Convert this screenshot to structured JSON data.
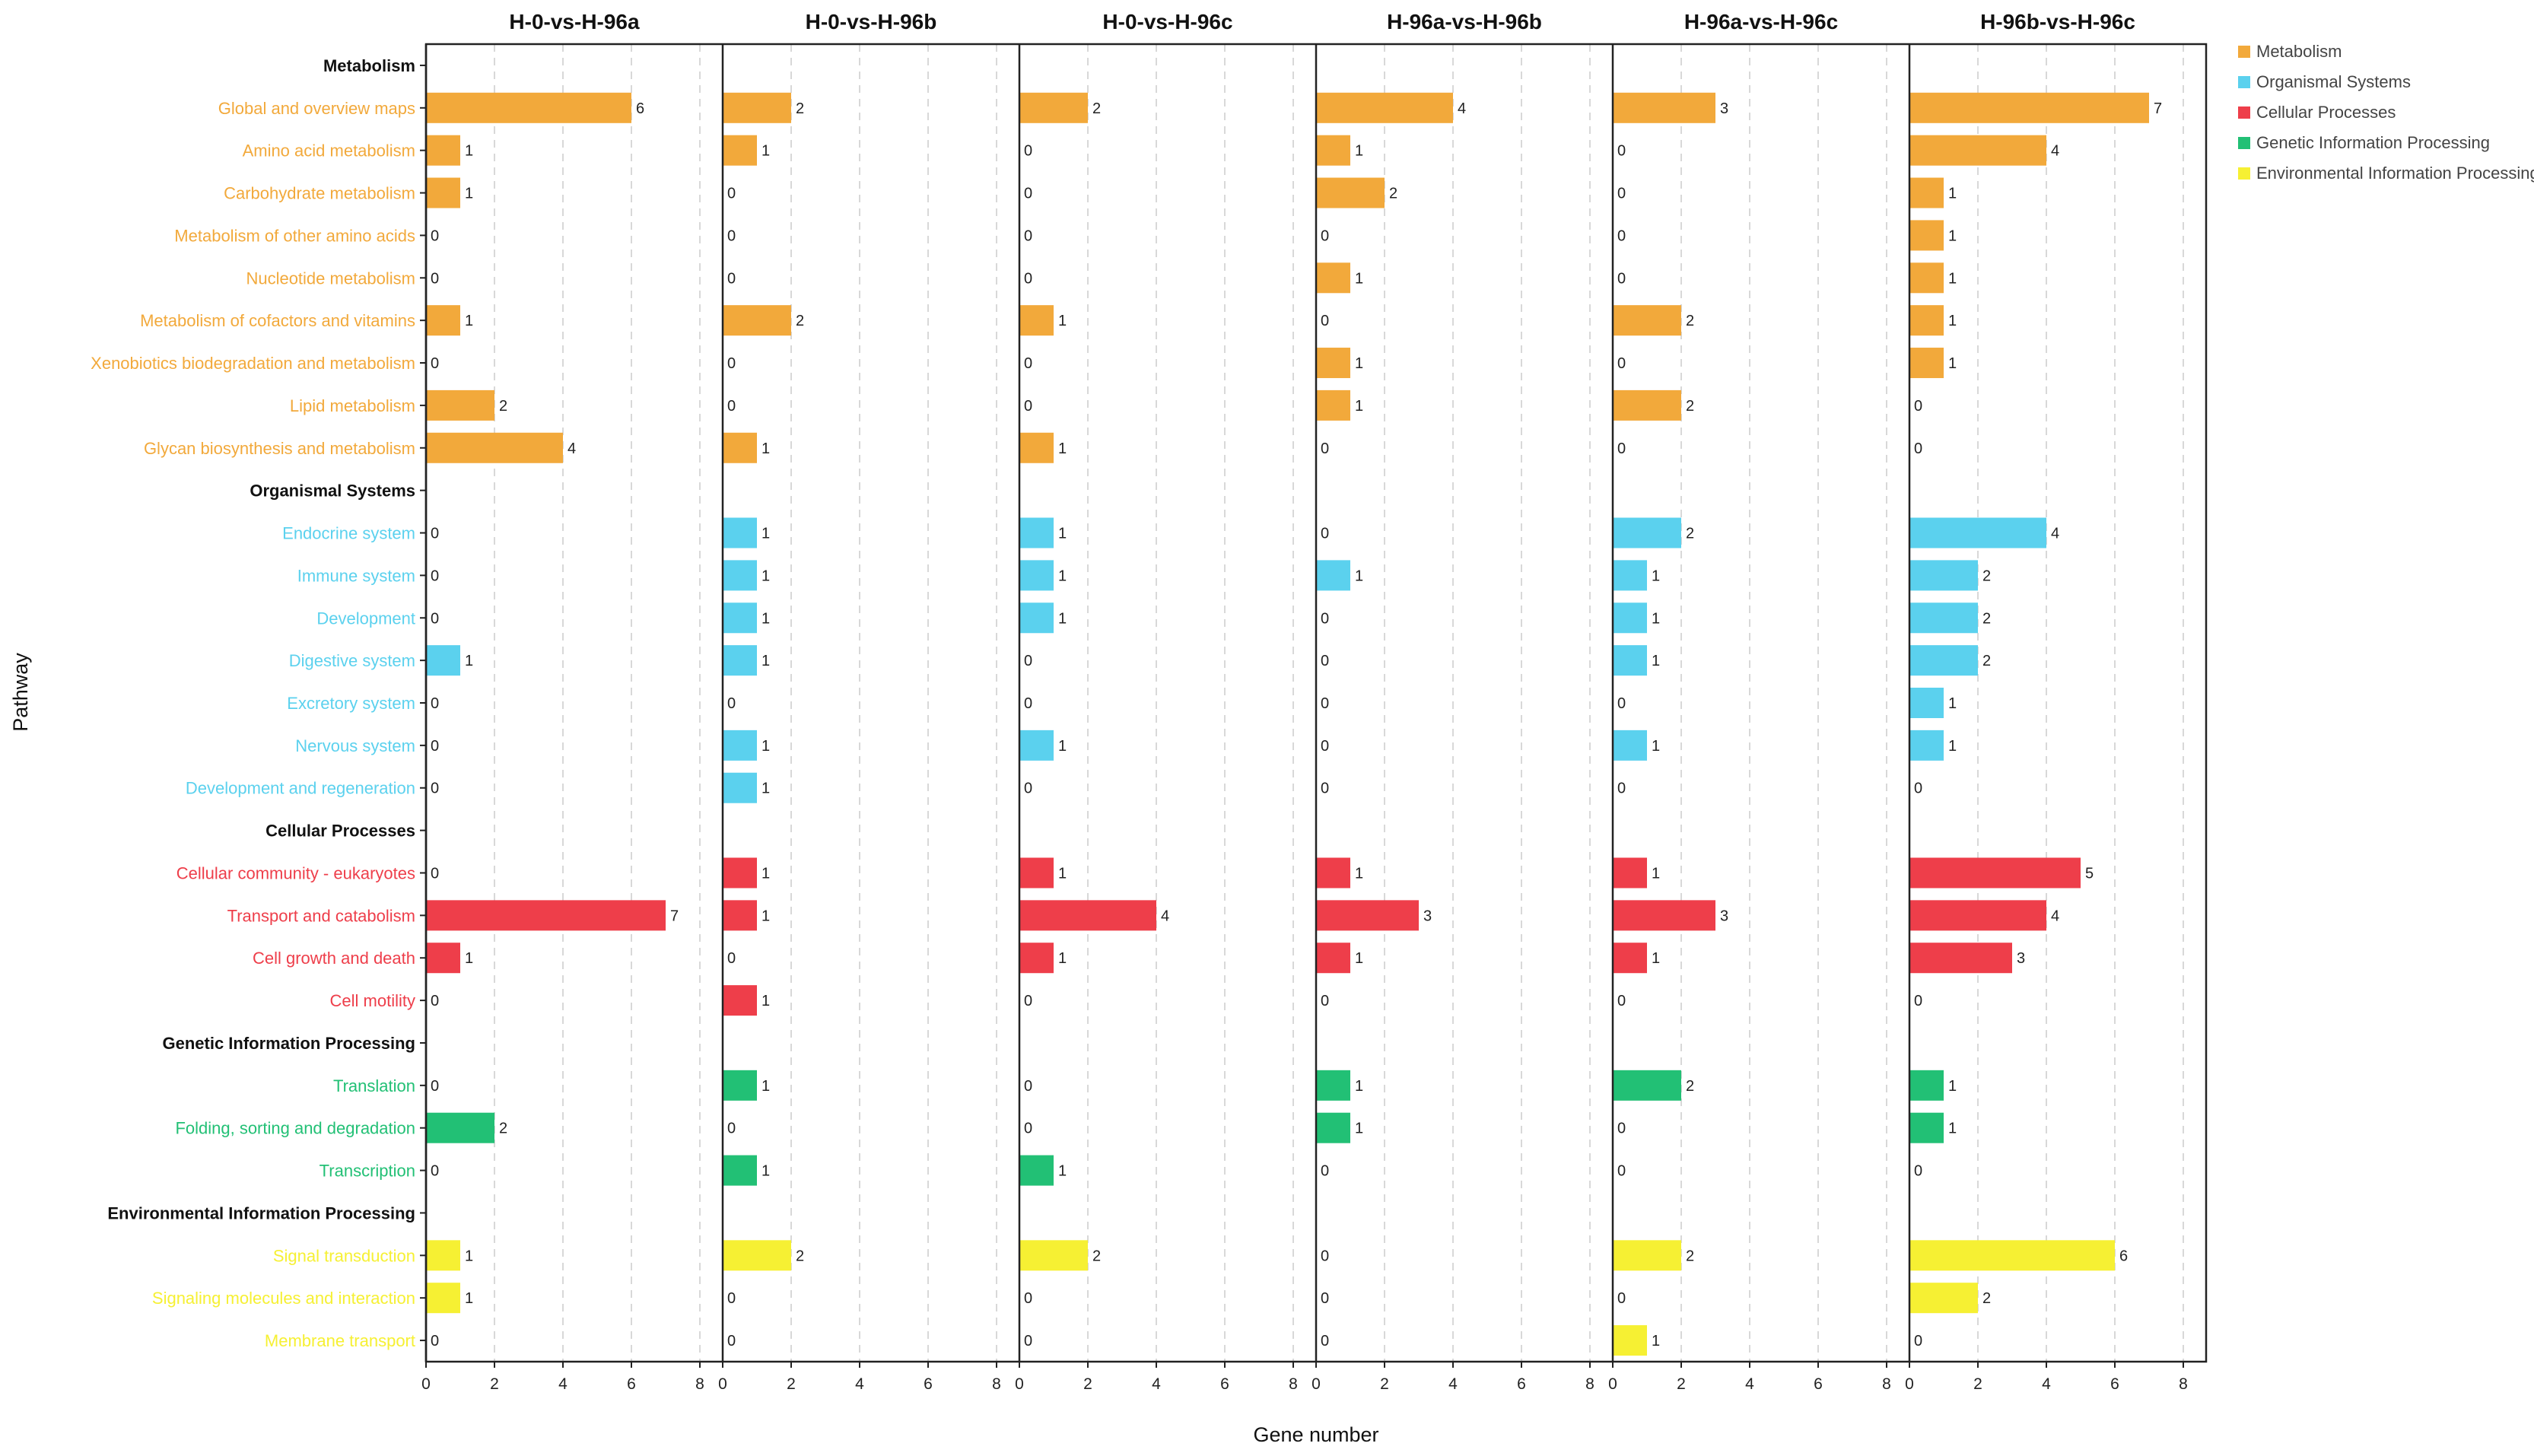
{
  "chart_data": {
    "type": "bar",
    "orientation": "horizontal",
    "xlabel": "Gene number",
    "ylabel": "Pathway",
    "xlim": [
      0,
      8
    ],
    "xticks": [
      "0",
      "2",
      "4",
      "6",
      "8"
    ],
    "grid": true,
    "legend_position": "top-right",
    "class_colors": {
      "Metabolism": "#F2A93B",
      "Organismal Systems": "#5BD1EE",
      "Cellular Processes": "#EE3E4A",
      "Genetic Information Processing": "#22C075",
      "Environmental Information Processing": "#F6F033"
    },
    "legend": [
      "Metabolism",
      "Organismal Systems",
      "Cellular Processes",
      "Genetic Information Processing",
      "Environmental Information Processing"
    ],
    "panels": [
      "H-0-vs-H-96a",
      "H-0-vs-H-96b",
      "H-0-vs-H-96c",
      "H-96a-vs-H-96b",
      "H-96a-vs-H-96c",
      "H-96b-vs-H-96c"
    ],
    "rows": [
      {
        "label": "Metabolism",
        "header": true
      },
      {
        "label": "Global and overview maps",
        "class": "Metabolism",
        "values": [
          6,
          2,
          2,
          4,
          3,
          7
        ]
      },
      {
        "label": "Amino acid metabolism",
        "class": "Metabolism",
        "values": [
          1,
          1,
          0,
          1,
          0,
          4
        ]
      },
      {
        "label": "Carbohydrate metabolism",
        "class": "Metabolism",
        "values": [
          1,
          0,
          0,
          2,
          0,
          1
        ]
      },
      {
        "label": "Metabolism of other amino acids",
        "class": "Metabolism",
        "values": [
          0,
          0,
          0,
          0,
          0,
          1
        ]
      },
      {
        "label": "Nucleotide metabolism",
        "class": "Metabolism",
        "values": [
          0,
          0,
          0,
          1,
          0,
          1
        ]
      },
      {
        "label": "Metabolism of cofactors and vitamins",
        "class": "Metabolism",
        "values": [
          1,
          2,
          1,
          0,
          2,
          1
        ]
      },
      {
        "label": "Xenobiotics biodegradation and metabolism",
        "class": "Metabolism",
        "values": [
          0,
          0,
          0,
          1,
          0,
          1
        ]
      },
      {
        "label": "Lipid metabolism",
        "class": "Metabolism",
        "values": [
          2,
          0,
          0,
          1,
          2,
          0
        ]
      },
      {
        "label": "Glycan biosynthesis and metabolism",
        "class": "Metabolism",
        "values": [
          4,
          1,
          1,
          0,
          0,
          0
        ]
      },
      {
        "label": "Organismal Systems",
        "header": true
      },
      {
        "label": "Endocrine system",
        "class": "Organismal Systems",
        "values": [
          0,
          1,
          1,
          0,
          2,
          4
        ]
      },
      {
        "label": "Immune system",
        "class": "Organismal Systems",
        "values": [
          0,
          1,
          1,
          1,
          1,
          2
        ]
      },
      {
        "label": "Development",
        "class": "Organismal Systems",
        "values": [
          0,
          1,
          1,
          0,
          1,
          2
        ]
      },
      {
        "label": "Digestive system",
        "class": "Organismal Systems",
        "values": [
          1,
          1,
          0,
          0,
          1,
          2
        ]
      },
      {
        "label": "Excretory system",
        "class": "Organismal Systems",
        "values": [
          0,
          0,
          0,
          0,
          0,
          1
        ]
      },
      {
        "label": "Nervous system",
        "class": "Organismal Systems",
        "values": [
          0,
          1,
          1,
          0,
          1,
          1
        ]
      },
      {
        "label": "Development and regeneration",
        "class": "Organismal Systems",
        "values": [
          0,
          1,
          0,
          0,
          0,
          0
        ]
      },
      {
        "label": "Cellular Processes",
        "header": true
      },
      {
        "label": "Cellular community - eukaryotes",
        "class": "Cellular Processes",
        "values": [
          0,
          1,
          1,
          1,
          1,
          5
        ]
      },
      {
        "label": "Transport and catabolism",
        "class": "Cellular Processes",
        "values": [
          7,
          1,
          4,
          3,
          3,
          4
        ]
      },
      {
        "label": "Cell growth and death",
        "class": "Cellular Processes",
        "values": [
          1,
          0,
          1,
          1,
          1,
          3
        ]
      },
      {
        "label": "Cell motility",
        "class": "Cellular Processes",
        "values": [
          0,
          1,
          0,
          0,
          0,
          0
        ]
      },
      {
        "label": "Genetic Information Processing",
        "header": true
      },
      {
        "label": "Translation",
        "class": "Genetic Information Processing",
        "values": [
          0,
          1,
          0,
          1,
          2,
          1
        ]
      },
      {
        "label": "Folding, sorting and degradation",
        "class": "Genetic Information Processing",
        "values": [
          2,
          0,
          0,
          1,
          0,
          1
        ]
      },
      {
        "label": "Transcription",
        "class": "Genetic Information Processing",
        "values": [
          0,
          1,
          1,
          0,
          0,
          0
        ]
      },
      {
        "label": "Environmental Information Processing",
        "header": true
      },
      {
        "label": "Signal transduction",
        "class": "Environmental Information Processing",
        "values": [
          1,
          2,
          2,
          0,
          2,
          6
        ]
      },
      {
        "label": "Signaling molecules and interaction",
        "class": "Environmental Information Processing",
        "values": [
          1,
          0,
          0,
          0,
          0,
          2
        ]
      },
      {
        "label": "Membrane transport",
        "class": "Environmental Information Processing",
        "values": [
          0,
          0,
          0,
          0,
          1,
          0
        ]
      }
    ]
  }
}
